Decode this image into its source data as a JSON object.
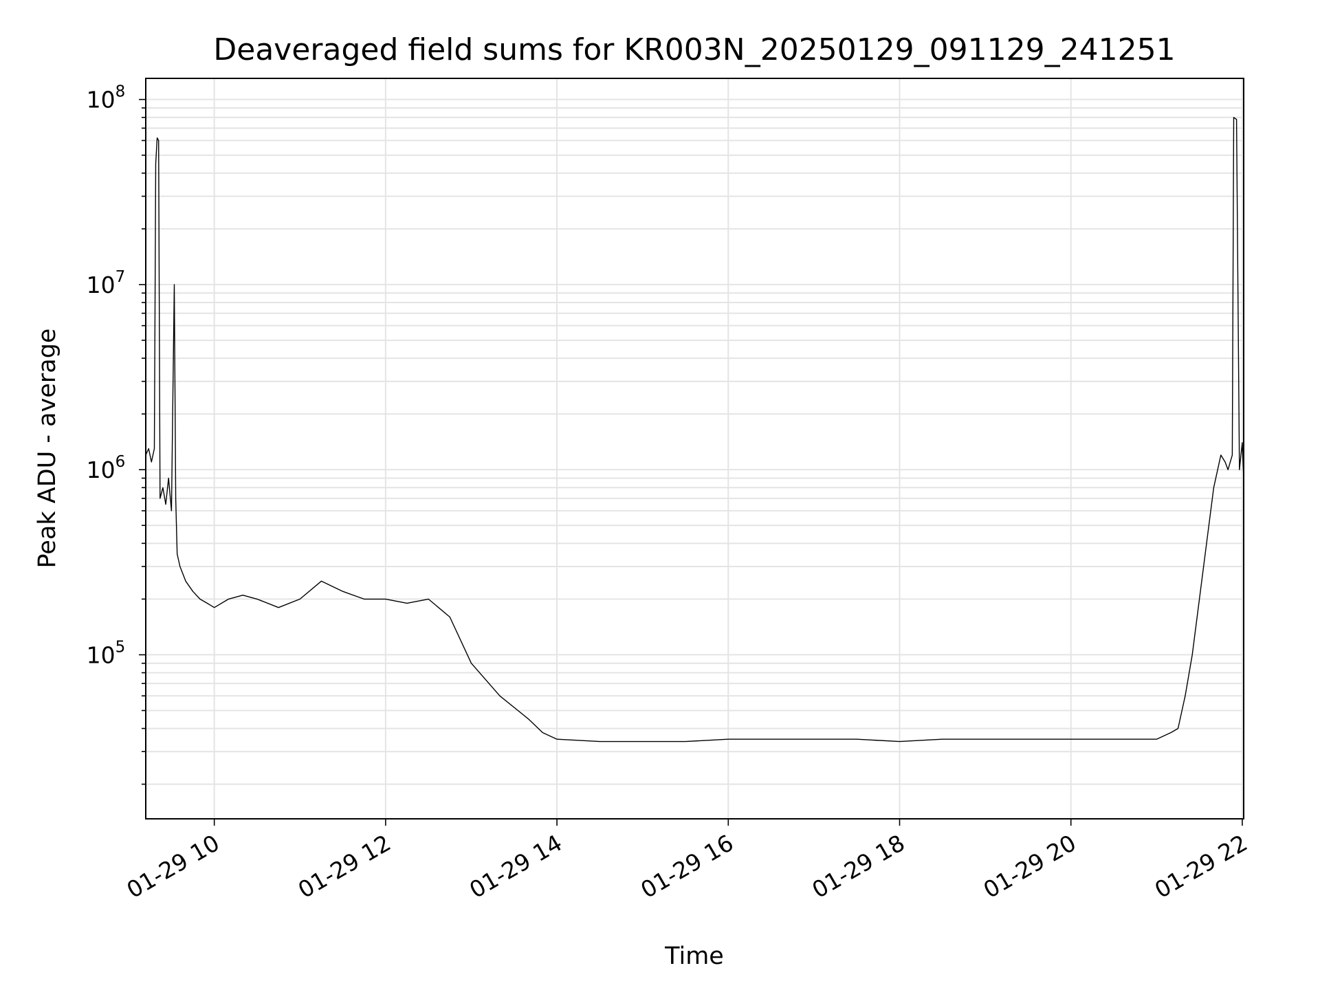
{
  "chart_data": {
    "type": "line",
    "title": "Deaveraged field sums for KR003N_20250129_091129_241251",
    "xlabel": "Time",
    "ylabel": "Peak ADU - average",
    "y_scale": "log",
    "xlim": [
      "01-29 09:12",
      "01-29 22:01"
    ],
    "ylim": [
      13000,
      130000000
    ],
    "grid": true,
    "line_color": "#000000",
    "x_ticks": [
      {
        "label": "01-29 10",
        "value": "01-29 10:00"
      },
      {
        "label": "01-29 12",
        "value": "01-29 12:00"
      },
      {
        "label": "01-29 14",
        "value": "01-29 14:00"
      },
      {
        "label": "01-29 16",
        "value": "01-29 16:00"
      },
      {
        "label": "01-29 18",
        "value": "01-29 18:00"
      },
      {
        "label": "01-29 20",
        "value": "01-29 20:00"
      },
      {
        "label": "01-29 22",
        "value": "01-29 22:00"
      }
    ],
    "y_ticks": [
      {
        "base": "10",
        "exp": "5",
        "value": 100000
      },
      {
        "base": "10",
        "exp": "6",
        "value": 1000000
      },
      {
        "base": "10",
        "exp": "7",
        "value": 10000000
      },
      {
        "base": "10",
        "exp": "8",
        "value": 100000000
      }
    ],
    "series": [
      {
        "x": [
          "01-29 09:12",
          "01-29 09:14",
          "01-29 09:16",
          "01-29 09:18",
          "01-29 09:19",
          "01-29 09:20",
          "01-29 09:21",
          "01-29 09:22",
          "01-29 09:24",
          "01-29 09:26",
          "01-29 09:28",
          "01-29 09:30",
          "01-29 09:32",
          "01-29 09:33",
          "01-29 09:34",
          "01-29 09:36",
          "01-29 09:40",
          "01-29 09:45",
          "01-29 09:50",
          "01-29 09:55",
          "01-29 10:00",
          "01-29 10:10",
          "01-29 10:20",
          "01-29 10:30",
          "01-29 10:45",
          "01-29 11:00",
          "01-29 11:15",
          "01-29 11:30",
          "01-29 11:45",
          "01-29 12:00",
          "01-29 12:15",
          "01-29 12:30",
          "01-29 12:45",
          "01-29 13:00",
          "01-29 13:20",
          "01-29 13:40",
          "01-29 13:50",
          "01-29 14:00",
          "01-29 14:30",
          "01-29 15:00",
          "01-29 15:30",
          "01-29 16:00",
          "01-29 16:30",
          "01-29 17:00",
          "01-29 17:30",
          "01-29 18:00",
          "01-29 18:30",
          "01-29 19:00",
          "01-29 19:30",
          "01-29 20:00",
          "01-29 20:30",
          "01-29 21:00",
          "01-29 21:10",
          "01-29 21:15",
          "01-29 21:20",
          "01-29 21:25",
          "01-29 21:30",
          "01-29 21:35",
          "01-29 21:40",
          "01-29 21:45",
          "01-29 21:48",
          "01-29 21:50",
          "01-29 21:53",
          "01-29 21:54",
          "01-29 21:56",
          "01-29 21:58",
          "01-29 22:00",
          "01-29 22:01"
        ],
        "values": [
          1200000,
          1300000,
          1100000,
          1300000,
          45000000,
          62000000,
          60000000,
          700000,
          800000,
          650000,
          900000,
          600000,
          10000000,
          700000,
          350000,
          300000,
          250000,
          220000,
          200000,
          190000,
          180000,
          200000,
          210000,
          200000,
          180000,
          200000,
          250000,
          220000,
          200000,
          200000,
          190000,
          200000,
          160000,
          90000,
          60000,
          45000,
          38000,
          35000,
          34000,
          34000,
          34000,
          35000,
          35000,
          35000,
          35000,
          34000,
          35000,
          35000,
          35000,
          35000,
          35000,
          35000,
          38000,
          40000,
          60000,
          100000,
          200000,
          400000,
          800000,
          1200000,
          1100000,
          1000000,
          1200000,
          80000000,
          78000000,
          1000000,
          1400000,
          900000
        ]
      }
    ]
  }
}
